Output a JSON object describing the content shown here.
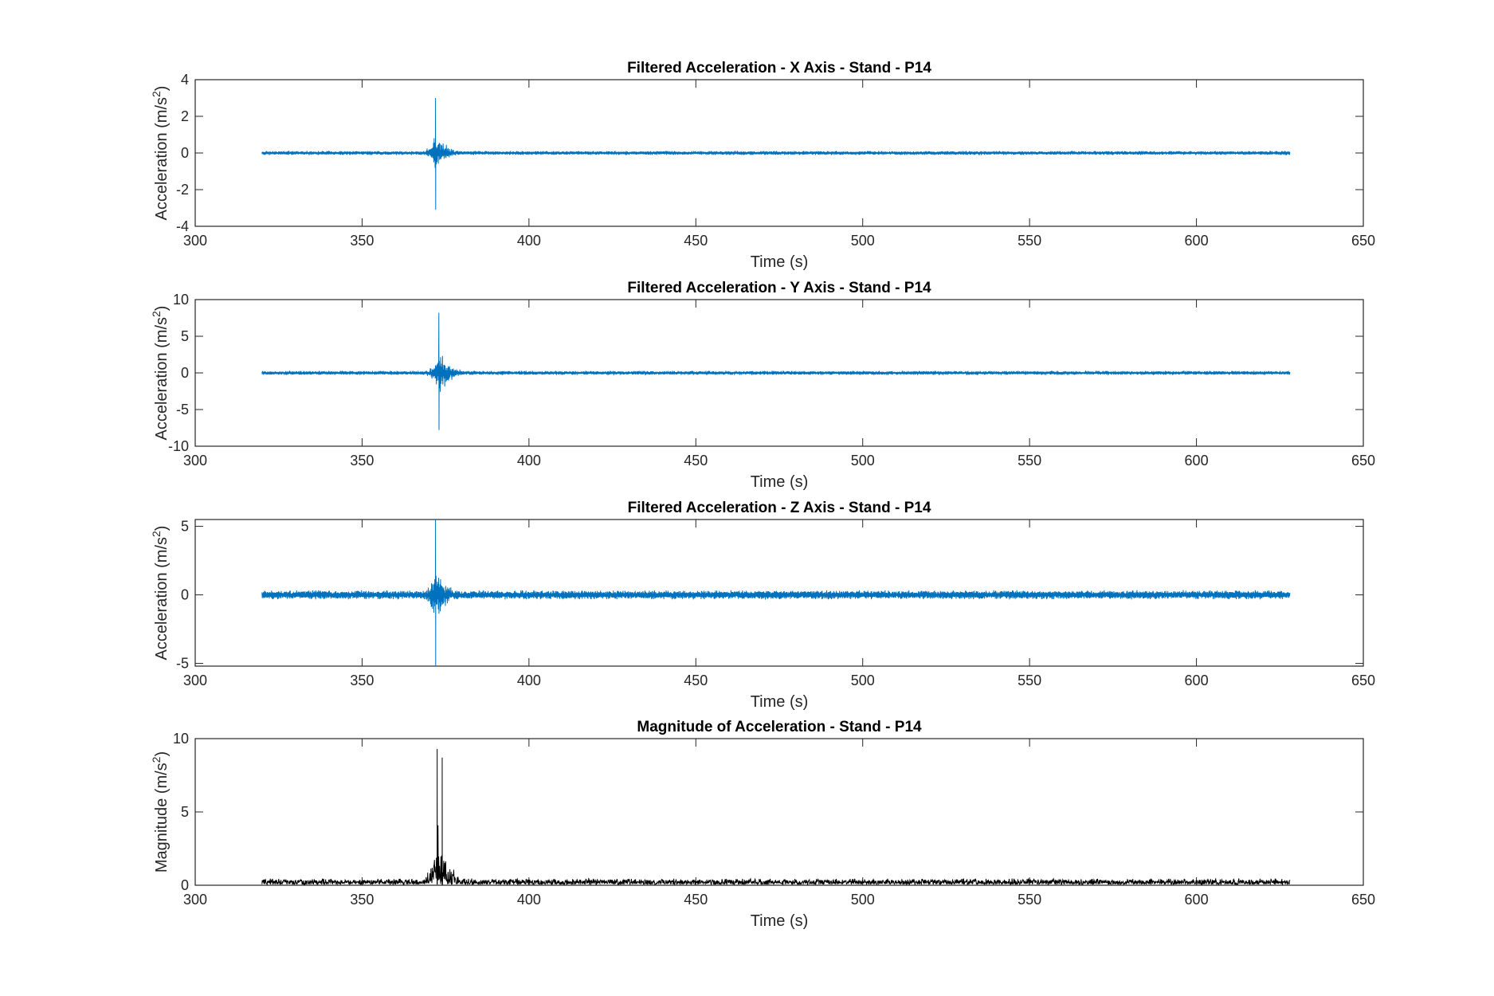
{
  "chart_data": [
    {
      "type": "line",
      "title": "Filtered Acceleration - X Axis - Stand - P14",
      "xlabel": "Time (s)",
      "ylabel": "Acceleration (m/s",
      "ylabel_sup": "2",
      "ylabel_end": ")",
      "xlim": [
        300,
        650
      ],
      "ylim": [
        -4,
        4
      ],
      "xticks": [
        300,
        350,
        400,
        450,
        500,
        550,
        600,
        650
      ],
      "yticks": [
        -4,
        -2,
        0,
        2,
        4
      ],
      "color": "#0072BD",
      "series": [
        {
          "x_range": [
            320,
            628
          ],
          "baseline": 0,
          "noise_amplitude": 0.12,
          "burst": {
            "x_range": [
              368,
              386
            ],
            "peak_x": 372,
            "max": 3.0,
            "min": -3.1
          }
        }
      ]
    },
    {
      "type": "line",
      "title": "Filtered Acceleration - Y Axis - Stand - P14",
      "xlabel": "Time (s)",
      "ylabel": "Acceleration (m/s",
      "ylabel_sup": "2",
      "ylabel_end": ")",
      "xlim": [
        300,
        650
      ],
      "ylim": [
        -10,
        10
      ],
      "xticks": [
        300,
        350,
        400,
        450,
        500,
        550,
        600,
        650
      ],
      "yticks": [
        -10,
        -5,
        0,
        5,
        10
      ],
      "color": "#0072BD",
      "series": [
        {
          "x_range": [
            320,
            628
          ],
          "baseline": 0,
          "noise_amplitude": 0.3,
          "burst": {
            "x_range": [
              368,
              400
            ],
            "peak_x": 373,
            "max": 8.2,
            "min": -7.8
          }
        }
      ]
    },
    {
      "type": "line",
      "title": "Filtered Acceleration - Z Axis - Stand - P14",
      "xlabel": "Time (s)",
      "ylabel": "Acceleration (m/s",
      "ylabel_sup": "2",
      "ylabel_end": ")",
      "xlim": [
        300,
        650
      ],
      "ylim": [
        -5.2,
        5.5
      ],
      "xticks": [
        300,
        350,
        400,
        450,
        500,
        550,
        600,
        650
      ],
      "yticks": [
        -5,
        0,
        5
      ],
      "color": "#0072BD",
      "series": [
        {
          "x_range": [
            320,
            628
          ],
          "baseline": 0,
          "noise_amplitude": 0.35,
          "burst": {
            "x_range": [
              368,
              385
            ],
            "peak_x": 372,
            "max": 5.5,
            "min": -5.2
          }
        }
      ]
    },
    {
      "type": "line",
      "title": "Magnitude of Acceleration - Stand - P14",
      "xlabel": "Time (s)",
      "ylabel": "Magnitude (m/s",
      "ylabel_sup": "2",
      "ylabel_end": ")",
      "xlim": [
        300,
        650
      ],
      "ylim": [
        0,
        10
      ],
      "xticks": [
        300,
        350,
        400,
        450,
        500,
        550,
        600,
        650
      ],
      "yticks": [
        0,
        5,
        10
      ],
      "color": "#000000",
      "series": [
        {
          "x_range": [
            320,
            628
          ],
          "baseline": 0.05,
          "noise_amplitude": 0.35,
          "burst": {
            "x_range": [
              368,
              405
            ],
            "peaks": [
              {
                "x": 372.5,
                "value": 9.3
              },
              {
                "x": 374,
                "value": 8.7
              }
            ]
          }
        }
      ]
    }
  ]
}
